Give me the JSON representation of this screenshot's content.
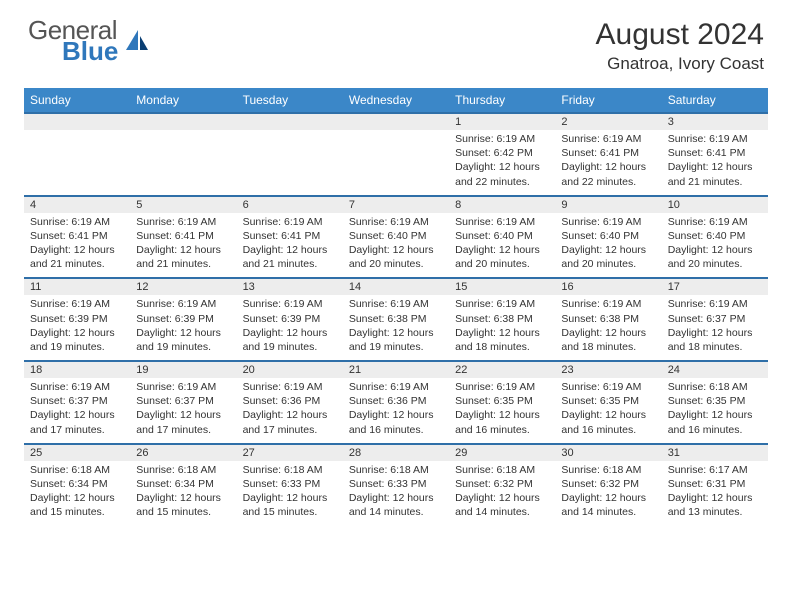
{
  "logo": {
    "text1": "General",
    "text2": "Blue"
  },
  "title": "August 2024",
  "location": "Gnatroa, Ivory Coast",
  "colors": {
    "header_bg": "#3b87c8",
    "daynum_bg": "#ededed",
    "row_border": "#2f6fa8",
    "logo_blue": "#2f77bb"
  },
  "weekdays": [
    "Sunday",
    "Monday",
    "Tuesday",
    "Wednesday",
    "Thursday",
    "Friday",
    "Saturday"
  ],
  "weeks": [
    [
      {
        "n": "",
        "lines": []
      },
      {
        "n": "",
        "lines": []
      },
      {
        "n": "",
        "lines": []
      },
      {
        "n": "",
        "lines": []
      },
      {
        "n": "1",
        "lines": [
          "Sunrise: 6:19 AM",
          "Sunset: 6:42 PM",
          "Daylight: 12 hours and 22 minutes."
        ]
      },
      {
        "n": "2",
        "lines": [
          "Sunrise: 6:19 AM",
          "Sunset: 6:41 PM",
          "Daylight: 12 hours and 22 minutes."
        ]
      },
      {
        "n": "3",
        "lines": [
          "Sunrise: 6:19 AM",
          "Sunset: 6:41 PM",
          "Daylight: 12 hours and 21 minutes."
        ]
      }
    ],
    [
      {
        "n": "4",
        "lines": [
          "Sunrise: 6:19 AM",
          "Sunset: 6:41 PM",
          "Daylight: 12 hours and 21 minutes."
        ]
      },
      {
        "n": "5",
        "lines": [
          "Sunrise: 6:19 AM",
          "Sunset: 6:41 PM",
          "Daylight: 12 hours and 21 minutes."
        ]
      },
      {
        "n": "6",
        "lines": [
          "Sunrise: 6:19 AM",
          "Sunset: 6:41 PM",
          "Daylight: 12 hours and 21 minutes."
        ]
      },
      {
        "n": "7",
        "lines": [
          "Sunrise: 6:19 AM",
          "Sunset: 6:40 PM",
          "Daylight: 12 hours and 20 minutes."
        ]
      },
      {
        "n": "8",
        "lines": [
          "Sunrise: 6:19 AM",
          "Sunset: 6:40 PM",
          "Daylight: 12 hours and 20 minutes."
        ]
      },
      {
        "n": "9",
        "lines": [
          "Sunrise: 6:19 AM",
          "Sunset: 6:40 PM",
          "Daylight: 12 hours and 20 minutes."
        ]
      },
      {
        "n": "10",
        "lines": [
          "Sunrise: 6:19 AM",
          "Sunset: 6:40 PM",
          "Daylight: 12 hours and 20 minutes."
        ]
      }
    ],
    [
      {
        "n": "11",
        "lines": [
          "Sunrise: 6:19 AM",
          "Sunset: 6:39 PM",
          "Daylight: 12 hours and 19 minutes."
        ]
      },
      {
        "n": "12",
        "lines": [
          "Sunrise: 6:19 AM",
          "Sunset: 6:39 PM",
          "Daylight: 12 hours and 19 minutes."
        ]
      },
      {
        "n": "13",
        "lines": [
          "Sunrise: 6:19 AM",
          "Sunset: 6:39 PM",
          "Daylight: 12 hours and 19 minutes."
        ]
      },
      {
        "n": "14",
        "lines": [
          "Sunrise: 6:19 AM",
          "Sunset: 6:38 PM",
          "Daylight: 12 hours and 19 minutes."
        ]
      },
      {
        "n": "15",
        "lines": [
          "Sunrise: 6:19 AM",
          "Sunset: 6:38 PM",
          "Daylight: 12 hours and 18 minutes."
        ]
      },
      {
        "n": "16",
        "lines": [
          "Sunrise: 6:19 AM",
          "Sunset: 6:38 PM",
          "Daylight: 12 hours and 18 minutes."
        ]
      },
      {
        "n": "17",
        "lines": [
          "Sunrise: 6:19 AM",
          "Sunset: 6:37 PM",
          "Daylight: 12 hours and 18 minutes."
        ]
      }
    ],
    [
      {
        "n": "18",
        "lines": [
          "Sunrise: 6:19 AM",
          "Sunset: 6:37 PM",
          "Daylight: 12 hours and 17 minutes."
        ]
      },
      {
        "n": "19",
        "lines": [
          "Sunrise: 6:19 AM",
          "Sunset: 6:37 PM",
          "Daylight: 12 hours and 17 minutes."
        ]
      },
      {
        "n": "20",
        "lines": [
          "Sunrise: 6:19 AM",
          "Sunset: 6:36 PM",
          "Daylight: 12 hours and 17 minutes."
        ]
      },
      {
        "n": "21",
        "lines": [
          "Sunrise: 6:19 AM",
          "Sunset: 6:36 PM",
          "Daylight: 12 hours and 16 minutes."
        ]
      },
      {
        "n": "22",
        "lines": [
          "Sunrise: 6:19 AM",
          "Sunset: 6:35 PM",
          "Daylight: 12 hours and 16 minutes."
        ]
      },
      {
        "n": "23",
        "lines": [
          "Sunrise: 6:19 AM",
          "Sunset: 6:35 PM",
          "Daylight: 12 hours and 16 minutes."
        ]
      },
      {
        "n": "24",
        "lines": [
          "Sunrise: 6:18 AM",
          "Sunset: 6:35 PM",
          "Daylight: 12 hours and 16 minutes."
        ]
      }
    ],
    [
      {
        "n": "25",
        "lines": [
          "Sunrise: 6:18 AM",
          "Sunset: 6:34 PM",
          "Daylight: 12 hours and 15 minutes."
        ]
      },
      {
        "n": "26",
        "lines": [
          "Sunrise: 6:18 AM",
          "Sunset: 6:34 PM",
          "Daylight: 12 hours and 15 minutes."
        ]
      },
      {
        "n": "27",
        "lines": [
          "Sunrise: 6:18 AM",
          "Sunset: 6:33 PM",
          "Daylight: 12 hours and 15 minutes."
        ]
      },
      {
        "n": "28",
        "lines": [
          "Sunrise: 6:18 AM",
          "Sunset: 6:33 PM",
          "Daylight: 12 hours and 14 minutes."
        ]
      },
      {
        "n": "29",
        "lines": [
          "Sunrise: 6:18 AM",
          "Sunset: 6:32 PM",
          "Daylight: 12 hours and 14 minutes."
        ]
      },
      {
        "n": "30",
        "lines": [
          "Sunrise: 6:18 AM",
          "Sunset: 6:32 PM",
          "Daylight: 12 hours and 14 minutes."
        ]
      },
      {
        "n": "31",
        "lines": [
          "Sunrise: 6:17 AM",
          "Sunset: 6:31 PM",
          "Daylight: 12 hours and 13 minutes."
        ]
      }
    ]
  ]
}
